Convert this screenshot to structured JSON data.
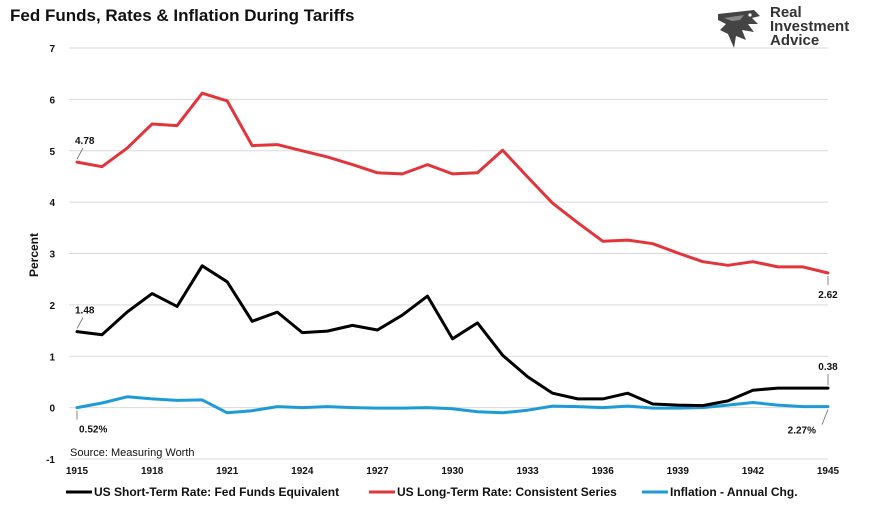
{
  "title": "Fed Funds, Rates & Inflation During Tariffs",
  "brand": {
    "lines": [
      "Real",
      "Investment",
      "Advice"
    ]
  },
  "source_note": "Source: Measuring Worth",
  "chart_data": {
    "type": "line",
    "ylabel": "Percent",
    "ylim": [
      -1,
      7
    ],
    "yticks": [
      -1,
      0,
      1,
      2,
      3,
      4,
      5,
      6,
      7
    ],
    "xlim": [
      1915,
      1945
    ],
    "xticks": [
      1915,
      1918,
      1921,
      1924,
      1927,
      1930,
      1933,
      1936,
      1939,
      1942,
      1945
    ],
    "grid": "horizontal",
    "legend_position": "bottom",
    "x": [
      1915,
      1916,
      1917,
      1918,
      1919,
      1920,
      1921,
      1922,
      1923,
      1924,
      1925,
      1926,
      1927,
      1928,
      1929,
      1930,
      1931,
      1932,
      1933,
      1934,
      1935,
      1936,
      1937,
      1938,
      1939,
      1940,
      1941,
      1942,
      1943,
      1944,
      1945
    ],
    "series": [
      {
        "name": "US Short-Term Rate: Fed Funds Equivalent",
        "color": "#000000",
        "values": [
          1.48,
          1.42,
          1.86,
          2.22,
          1.97,
          2.76,
          2.45,
          1.68,
          1.86,
          1.46,
          1.49,
          1.6,
          1.51,
          1.8,
          2.17,
          1.34,
          1.65,
          1.02,
          0.6,
          0.28,
          0.17,
          0.17,
          0.28,
          0.07,
          0.05,
          0.04,
          0.13,
          0.34,
          0.38,
          0.38,
          0.38
        ]
      },
      {
        "name": "US Long-Term Rate: Consistent Series",
        "color": "#e2343b",
        "values": [
          4.78,
          4.69,
          5.05,
          5.52,
          5.49,
          6.12,
          5.97,
          5.1,
          5.12,
          5.0,
          4.88,
          4.73,
          4.57,
          4.55,
          4.73,
          4.55,
          4.57,
          5.01,
          4.49,
          3.98,
          3.6,
          3.24,
          3.26,
          3.19,
          3.01,
          2.84,
          2.77,
          2.84,
          2.74,
          2.74,
          2.62
        ]
      },
      {
        "name": "Inflation - Annual Chg.",
        "color": "#1e9bd7",
        "values": [
          0.0,
          0.09,
          0.21,
          0.17,
          0.14,
          0.15,
          -0.1,
          -0.06,
          0.02,
          0.0,
          0.02,
          0.0,
          -0.01,
          -0.01,
          0.0,
          -0.02,
          -0.08,
          -0.1,
          -0.05,
          0.03,
          0.02,
          0.0,
          0.03,
          -0.01,
          -0.01,
          0.0,
          0.05,
          0.1,
          0.05,
          0.02,
          0.02
        ]
      }
    ],
    "annotations": [
      {
        "text": "4.78",
        "x": 1915,
        "y": 4.78,
        "series": 1,
        "side": "above"
      },
      {
        "text": "1.48",
        "x": 1915,
        "y": 1.48,
        "series": 0,
        "side": "above"
      },
      {
        "text": "0.52%",
        "x": 1915,
        "y": 0.0,
        "series": 2,
        "side": "below"
      },
      {
        "text": "2.62",
        "x": 1945,
        "y": 2.62,
        "series": 1,
        "side": "below"
      },
      {
        "text": "0.38",
        "x": 1945,
        "y": 0.38,
        "series": 0,
        "side": "above"
      },
      {
        "text": "2.27%",
        "x": 1945,
        "y": 0.02,
        "series": 2,
        "side": "below-left"
      }
    ]
  }
}
